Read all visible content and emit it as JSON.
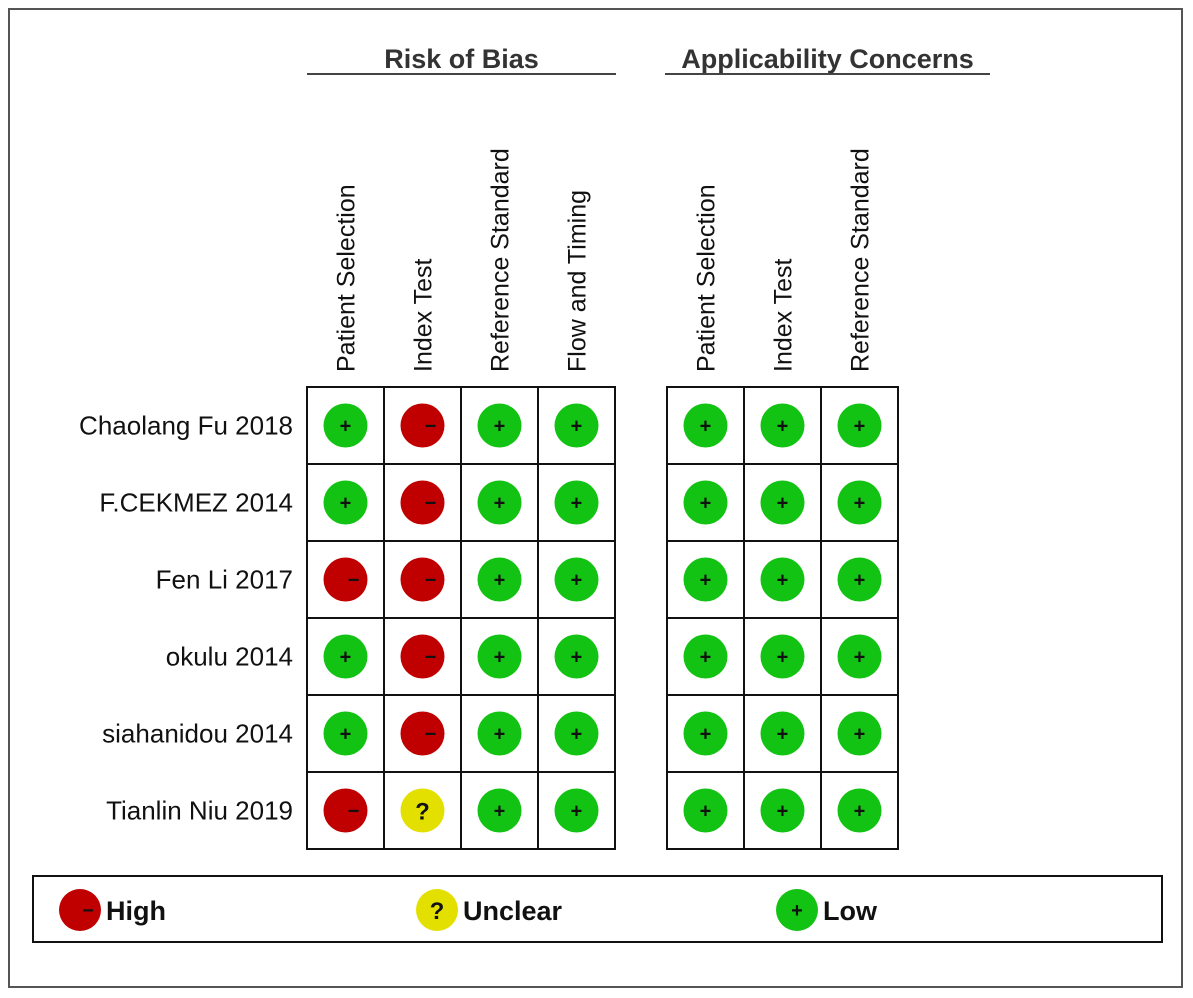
{
  "chart_data": {
    "type": "table",
    "groups": [
      {
        "title": "Risk of Bias",
        "columns": [
          "Patient Selection",
          "Index Test",
          "Reference Standard",
          "Flow and Timing"
        ]
      },
      {
        "title": "Applicability Concerns",
        "columns": [
          "Patient Selection",
          "Index Test",
          "Reference Standard"
        ]
      }
    ],
    "studies": [
      {
        "name": "Chaolang Fu 2018",
        "risk_of_bias": [
          "low",
          "high",
          "low",
          "low"
        ],
        "applicability": [
          "low",
          "low",
          "low"
        ]
      },
      {
        "name": "F.CEKMEZ 2014",
        "risk_of_bias": [
          "low",
          "high",
          "low",
          "low"
        ],
        "applicability": [
          "low",
          "low",
          "low"
        ]
      },
      {
        "name": "Fen Li 2017",
        "risk_of_bias": [
          "high",
          "high",
          "low",
          "low"
        ],
        "applicability": [
          "low",
          "low",
          "low"
        ]
      },
      {
        "name": "okulu 2014",
        "risk_of_bias": [
          "low",
          "high",
          "low",
          "low"
        ],
        "applicability": [
          "low",
          "low",
          "low"
        ]
      },
      {
        "name": "siahanidou 2014",
        "risk_of_bias": [
          "low",
          "high",
          "low",
          "low"
        ],
        "applicability": [
          "low",
          "low",
          "low"
        ]
      },
      {
        "name": "Tianlin Niu 2019",
        "risk_of_bias": [
          "high",
          "unclear",
          "low",
          "low"
        ],
        "applicability": [
          "low",
          "low",
          "low"
        ]
      }
    ],
    "legend": [
      {
        "key": "high",
        "label": "High",
        "symbol": "−",
        "color": "#c00000"
      },
      {
        "key": "unclear",
        "label": "Unclear",
        "symbol": "?",
        "color": "#e3e000"
      },
      {
        "key": "low",
        "label": "Low",
        "symbol": "+",
        "color": "#13c313"
      }
    ]
  }
}
